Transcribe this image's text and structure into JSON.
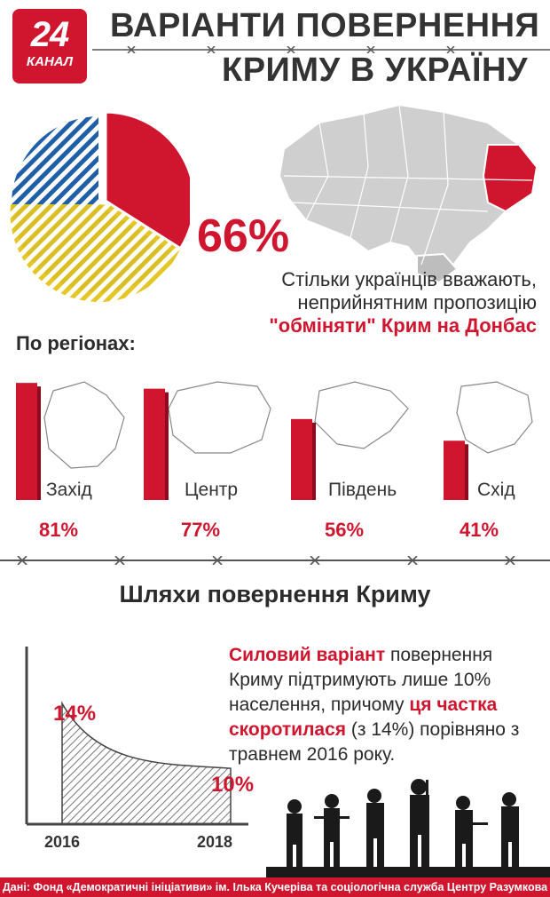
{
  "logo": {
    "number": "24",
    "word": "КАНАЛ"
  },
  "header": {
    "title_line1": "ВАРІАНТИ ПОВЕРНЕННЯ",
    "title_line2": "КРИМУ В УКРАЇНУ"
  },
  "headline": {
    "value": "66%",
    "line1": "Стільки українців вважають,",
    "line2": "неприйнятним пропозицію",
    "line3": "\"обміняти\" Крим на Донбас"
  },
  "colors": {
    "accent": "#d0162f",
    "blue": "#1f5fa8",
    "yellow": "#e3c41c",
    "map_gray": "#cfcfcf"
  },
  "section2": {
    "title": "Шляхи повернення Криму",
    "p_red1": "Силовий варіант",
    "p_text1": " повернення Криму підтримують лише 10% населення, причому ",
    "p_red2": "ця частка скоротилася",
    "p_text2": " (з 14%) порівняно з травнем 2016 року."
  },
  "footer": "Дані: Фонд «Демократичні ініціативи» ім. Ілька Кучеріва та соціологічна служба Центру Разумкова",
  "chart_data": [
    {
      "type": "pie",
      "title": "",
      "slices": [
        {
          "value": 66,
          "color": "#1f5fa8"
        },
        {
          "value": 34,
          "color": "#d0162f"
        }
      ],
      "labels": [
        "66%"
      ]
    },
    {
      "type": "bar",
      "title": "По регіонах:",
      "categories": [
        "Захід",
        "Центр",
        "Південь",
        "Схід"
      ],
      "values": [
        81,
        77,
        56,
        41
      ],
      "labels": [
        "81%",
        "77%",
        "56%",
        "41%"
      ],
      "ylim": [
        0,
        100
      ]
    },
    {
      "type": "area",
      "title": "",
      "x": [
        "2016",
        "2018"
      ],
      "values": [
        14,
        10
      ],
      "labels": [
        "14%",
        "10%"
      ]
    }
  ]
}
